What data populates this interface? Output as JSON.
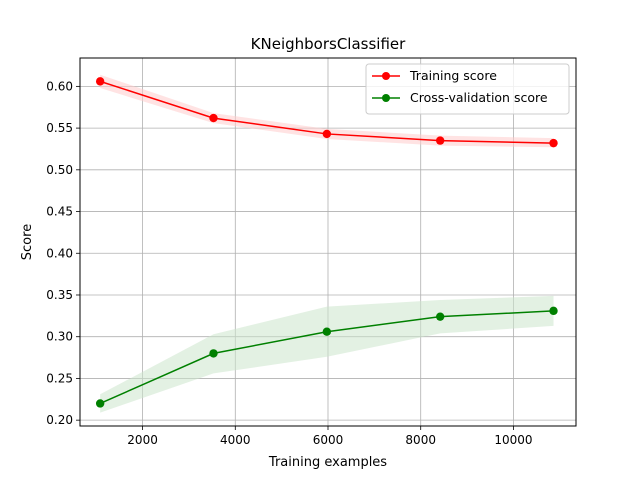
{
  "chart_data": {
    "type": "line",
    "title": "KNeighborsClassifier",
    "xlabel": "Training examples",
    "ylabel": "Score",
    "xlim": [
      650,
      11350
    ],
    "ylim": [
      0.193,
      0.634
    ],
    "xticks": [
      2000,
      4000,
      6000,
      8000,
      10000
    ],
    "yticks": [
      0.2,
      0.25,
      0.3,
      0.35,
      0.4,
      0.45,
      0.5,
      0.55,
      0.6
    ],
    "grid": true,
    "legend_position": "top-right",
    "x": [
      1085,
      3530,
      5975,
      8420,
      10865
    ],
    "series": [
      {
        "name": "Training score",
        "color": "#ff0000",
        "band_color": "#ffcccc",
        "values": [
          0.606,
          0.562,
          0.543,
          0.535,
          0.532
        ],
        "lower": [
          0.598,
          0.556,
          0.537,
          0.529,
          0.527
        ],
        "upper": [
          0.614,
          0.568,
          0.549,
          0.541,
          0.538
        ]
      },
      {
        "name": "Cross-validation score",
        "color": "#008000",
        "band_color": "#cce5cc",
        "values": [
          0.22,
          0.28,
          0.306,
          0.324,
          0.331
        ],
        "lower": [
          0.209,
          0.256,
          0.276,
          0.304,
          0.313
        ],
        "upper": [
          0.231,
          0.303,
          0.336,
          0.344,
          0.349
        ]
      }
    ]
  }
}
